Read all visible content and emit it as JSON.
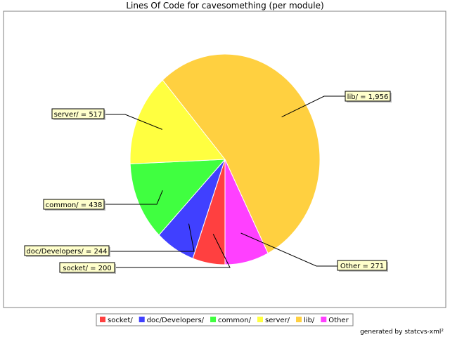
{
  "chart_data": {
    "type": "pie",
    "title": "Lines Of Code for cavesomething (per module)",
    "slices": [
      {
        "name": "socket/",
        "value": 200,
        "label": "socket/ = 200",
        "color": "#ff4040"
      },
      {
        "name": "doc/Developers/",
        "value": 244,
        "label": "doc/Developers/ = 244",
        "color": "#4040ff"
      },
      {
        "name": "common/",
        "value": 438,
        "label": "common/ = 438",
        "color": "#40ff40"
      },
      {
        "name": "server/",
        "value": 517,
        "label": "server/ = 517",
        "color": "#ffff40"
      },
      {
        "name": "lib/",
        "value": 1956,
        "label": "lib/ = 1,956",
        "color": "#ffd040"
      },
      {
        "name": "Other",
        "value": 271,
        "label": "Other = 271",
        "color": "#ff40ff"
      }
    ],
    "legend_position": "bottom"
  },
  "footer": "generated by statcvs-xml²"
}
